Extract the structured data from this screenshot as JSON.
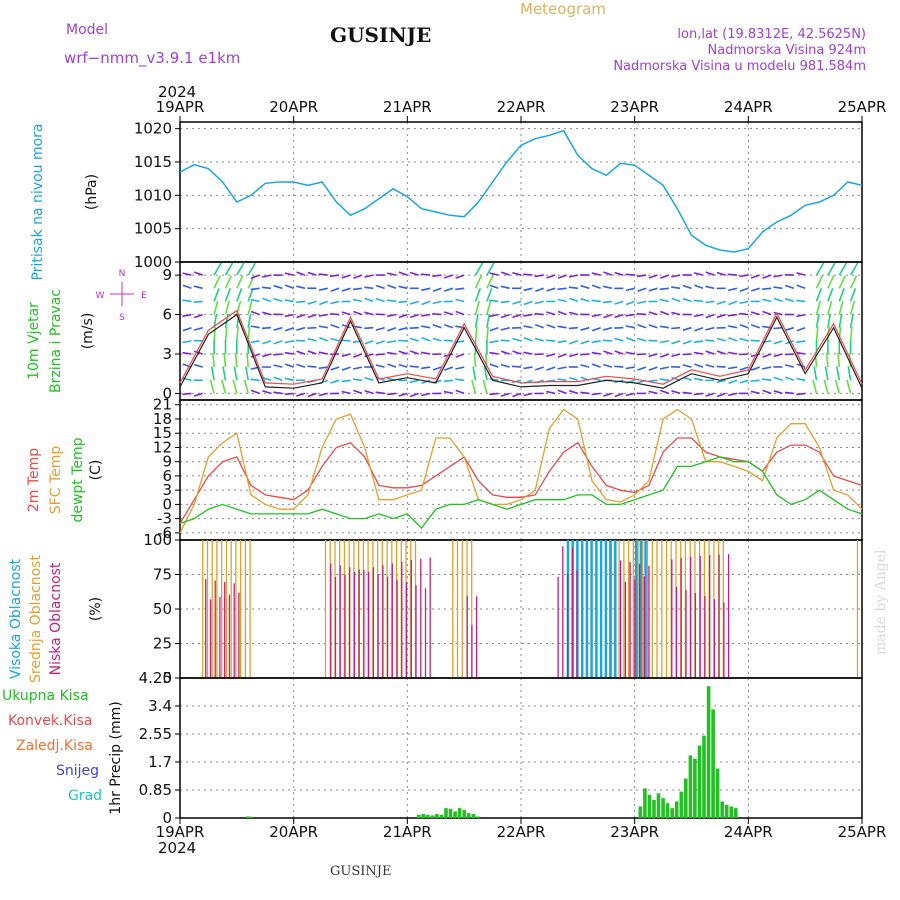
{
  "header": {
    "model_label": "Model",
    "model_name": "wrf−nmm_v3.9.1  e1km",
    "station_title": "GUSINJE",
    "meteogram_label": "Meteogram",
    "lonlat": "lon,lat (19.8312E, 42.5625N)",
    "elevation": "Nadmorska Visina 924m",
    "model_elevation": "Nadmorska Visina u modelu 981.584m",
    "year": "2024",
    "footer_station": "GUSINJE",
    "watermark": "made by Angel"
  },
  "colors": {
    "pressure": "#1aa4e0",
    "wind_speed_label": "#22c022",
    "wind_dir_label": "#c030c0",
    "temp2m": "#e84a4a",
    "sfc_temp": "#e0a030",
    "dewpoint": "#22c022",
    "cloud_high": "#1aa4e0",
    "cloud_mid": "#e0a030",
    "cloud_low": "#c02080",
    "precip_total": "#22c022",
    "precip_conv": "#e84a4a",
    "precip_frozen": "#f07030",
    "snow": "#4040e0",
    "graupel": "#20c0c0",
    "header_purple": "#a040d0",
    "meteogram_label": "#e0b060"
  },
  "time_axis": {
    "ticks": [
      "19APR",
      "20APR",
      "21APR",
      "22APR",
      "23APR",
      "24APR",
      "25APR"
    ],
    "top_year": "2024",
    "bottom_year": "2024"
  },
  "chart_data": [
    {
      "id": "pressure",
      "type": "line",
      "ylabel_main": "Pritisak na nivou mora",
      "ylabel_unit": "(hPa)",
      "ylim": [
        1000,
        1021
      ],
      "yticks": [
        1000,
        1005,
        1010,
        1015,
        1020
      ],
      "x_days": [
        0,
        0.125,
        0.25,
        0.375,
        0.5,
        0.625,
        0.75,
        0.875,
        1.0,
        1.125,
        1.25,
        1.375,
        1.5,
        1.625,
        1.75,
        1.875,
        2.0,
        2.125,
        2.25,
        2.375,
        2.5,
        2.625,
        2.75,
        2.875,
        3.0,
        3.125,
        3.25,
        3.375,
        3.5,
        3.625,
        3.75,
        3.875,
        4.0,
        4.125,
        4.25,
        4.375,
        4.5,
        4.625,
        4.75,
        4.875,
        5.0,
        5.125,
        5.25,
        5.375,
        5.5,
        5.625,
        5.75,
        5.875,
        6.0
      ],
      "values": [
        1013.5,
        1014.6,
        1014.0,
        1012.0,
        1009.0,
        1010.0,
        1011.8,
        1012.0,
        1012.0,
        1011.5,
        1012.0,
        1009.0,
        1007.0,
        1008.0,
        1009.5,
        1011.0,
        1009.8,
        1008.0,
        1007.5,
        1007.0,
        1006.8,
        1009.0,
        1012.0,
        1015.0,
        1017.5,
        1018.5,
        1019.0,
        1019.7,
        1016.0,
        1014.0,
        1013.0,
        1014.8,
        1014.5,
        1013.0,
        1011.5,
        1008.0,
        1004.0,
        1002.5,
        1001.8,
        1001.5,
        1002.0,
        1004.5,
        1006.0,
        1007.0,
        1008.5,
        1009.0,
        1010.0,
        1012.0,
        1011.5
      ]
    },
    {
      "id": "wind",
      "type": "line",
      "ylabel_main": "10m Vjetar",
      "ylabel_sub": "Brzina i Pravac",
      "ylabel_unit": "(m/s)",
      "ylim": [
        -0.5,
        10
      ],
      "yticks": [
        0,
        3,
        6,
        9
      ],
      "compass_N": "N",
      "compass_S": "S",
      "compass_E": "E",
      "compass_W": "W",
      "x_days": [
        0,
        0.25,
        0.5,
        0.75,
        1.0,
        1.25,
        1.5,
        1.75,
        2.0,
        2.25,
        2.5,
        2.75,
        3.0,
        3.25,
        3.5,
        3.75,
        4.0,
        4.25,
        4.5,
        4.75,
        5.0,
        5.25,
        5.5,
        5.75,
        6.0
      ],
      "values": [
        0.5,
        4.5,
        6.0,
        0.5,
        0.4,
        0.8,
        5.5,
        0.8,
        1.2,
        0.8,
        5.0,
        1.0,
        0.5,
        0.6,
        0.6,
        1.0,
        0.8,
        0.4,
        1.5,
        1.0,
        1.5,
        5.8,
        1.5,
        5.0,
        0.4
      ]
    },
    {
      "id": "temperature",
      "type": "line",
      "ylabel_main": "2m Temp",
      "ylabel_sub": "SFC Temp",
      "ylabel_sub2": "dewpt Temp",
      "ylabel_unit": "(C)",
      "ylim": [
        -7.5,
        22
      ],
      "yticks": [
        -6,
        -3,
        0,
        3,
        6,
        9,
        12,
        15,
        18,
        21
      ],
      "x_days": [
        0,
        0.125,
        0.25,
        0.375,
        0.5,
        0.625,
        0.75,
        0.875,
        1.0,
        1.125,
        1.25,
        1.375,
        1.5,
        1.625,
        1.75,
        1.875,
        2.0,
        2.125,
        2.25,
        2.375,
        2.5,
        2.625,
        2.75,
        2.875,
        3.0,
        3.125,
        3.25,
        3.375,
        3.5,
        3.625,
        3.75,
        3.875,
        4.0,
        4.125,
        4.25,
        4.375,
        4.5,
        4.625,
        4.75,
        4.875,
        5.0,
        5.125,
        5.25,
        5.375,
        5.5,
        5.625,
        5.75,
        5.875,
        6.0
      ],
      "series": [
        {
          "name": "2m Temp",
          "values": [
            -4,
            1,
            6,
            9,
            10,
            4,
            2,
            1.5,
            1,
            3,
            8,
            12,
            13,
            10,
            4,
            3.5,
            3.5,
            4,
            6,
            8,
            10,
            5,
            2,
            1.5,
            1.5,
            2,
            7,
            11,
            13,
            8,
            4,
            3,
            2.5,
            4,
            11,
            14,
            14,
            11,
            10,
            9.5,
            9,
            7,
            11,
            12.5,
            12.5,
            11,
            6,
            5,
            4
          ]
        },
        {
          "name": "SFC Temp",
          "values": [
            -6,
            0,
            10,
            13,
            15,
            2,
            0,
            -1,
            -1,
            2,
            12,
            18,
            19,
            12,
            1,
            1,
            2,
            3,
            14,
            14,
            10,
            1,
            0,
            0,
            1,
            3,
            16,
            20,
            18,
            5,
            1,
            0.5,
            2,
            5,
            18,
            20,
            18,
            9,
            9,
            8,
            7,
            5,
            14,
            17,
            17,
            12,
            3,
            2,
            -1
          ]
        },
        {
          "name": "dewpt Temp",
          "values": [
            -4,
            -3,
            -1,
            0,
            -1,
            -2,
            -2,
            -2,
            -2,
            -2,
            -1,
            -2,
            -3,
            -3,
            -2,
            -3,
            -2,
            -5,
            -1,
            0,
            0,
            1,
            0,
            -1,
            0,
            1,
            1,
            1,
            2,
            2,
            0,
            0,
            1,
            2,
            3,
            8,
            8,
            9,
            10,
            9,
            9,
            7,
            2,
            0,
            1,
            3,
            1,
            -1,
            -2
          ]
        }
      ]
    },
    {
      "id": "clouds",
      "type": "bar",
      "ylabel_main": "Visoka Oblacnost",
      "ylabel_sub": "Srednja Oblacnost",
      "ylabel_sub2": "Niska Oblacnost",
      "ylabel_unit": "(%)",
      "ylim": [
        0,
        100
      ],
      "yticks": [
        0,
        25,
        50,
        75,
        100
      ],
      "series": [
        {
          "name": "Srednja Oblacnost",
          "segments": [
            [
              0.2,
              0.64,
              100
            ],
            [
              1.28,
              2.08,
              100
            ],
            [
              2.4,
              2.6,
              100
            ],
            [
              3.78,
              4.8,
              100
            ],
            [
              5.96,
              6.0,
              100
            ]
          ]
        },
        {
          "name": "Visoka Oblacnost",
          "segments": [
            [
              3.4,
              3.82,
              100
            ],
            [
              4.0,
              4.12,
              100
            ]
          ]
        },
        {
          "name": "Niska Oblacnost",
          "segments": [
            [
              0.2,
              0.5,
              75
            ],
            [
              1.3,
              2.2,
              90
            ],
            [
              2.5,
              2.6,
              60
            ],
            [
              3.3,
              3.5,
              100
            ],
            [
              3.85,
              4.1,
              90
            ],
            [
              4.3,
              4.8,
              90
            ]
          ]
        }
      ]
    },
    {
      "id": "precip",
      "type": "bar",
      "ylabel_main": "1hr Precip",
      "ylabel_unit": "(mm)",
      "legend": [
        "Ukupna  Kisa",
        "Konvek.Kisa",
        "Zaledj.Kisa",
        "Snijeg",
        "Grad"
      ],
      "ylim": [
        0,
        4.25
      ],
      "yticks": [
        0,
        0.85,
        1.7,
        2.55,
        3.4,
        4.25
      ],
      "ytick_labels": [
        "0",
        "0.85",
        "1.7",
        "2.55",
        "3.4",
        "4.25"
      ],
      "x_days": [
        0.6,
        0.62,
        2.1,
        2.14,
        2.18,
        2.22,
        2.26,
        2.3,
        2.34,
        2.38,
        2.42,
        2.46,
        2.5,
        2.54,
        2.58,
        2.62,
        4.05,
        4.09,
        4.13,
        4.17,
        4.21,
        4.25,
        4.29,
        4.33,
        4.37,
        4.41,
        4.45,
        4.49,
        4.53,
        4.57,
        4.61,
        4.65,
        4.69,
        4.73,
        4.77,
        4.81,
        4.85,
        4.89
      ],
      "values": [
        0.05,
        0.04,
        0.1,
        0.12,
        0.1,
        0.08,
        0.12,
        0.1,
        0.3,
        0.28,
        0.2,
        0.3,
        0.25,
        0.15,
        0.12,
        0.05,
        0.35,
        0.9,
        0.7,
        0.55,
        0.75,
        0.6,
        0.45,
        0.3,
        0.5,
        0.8,
        1.2,
        1.9,
        1.8,
        2.2,
        2.5,
        4.0,
        3.3,
        1.5,
        0.5,
        0.4,
        0.35,
        0.3
      ]
    }
  ]
}
